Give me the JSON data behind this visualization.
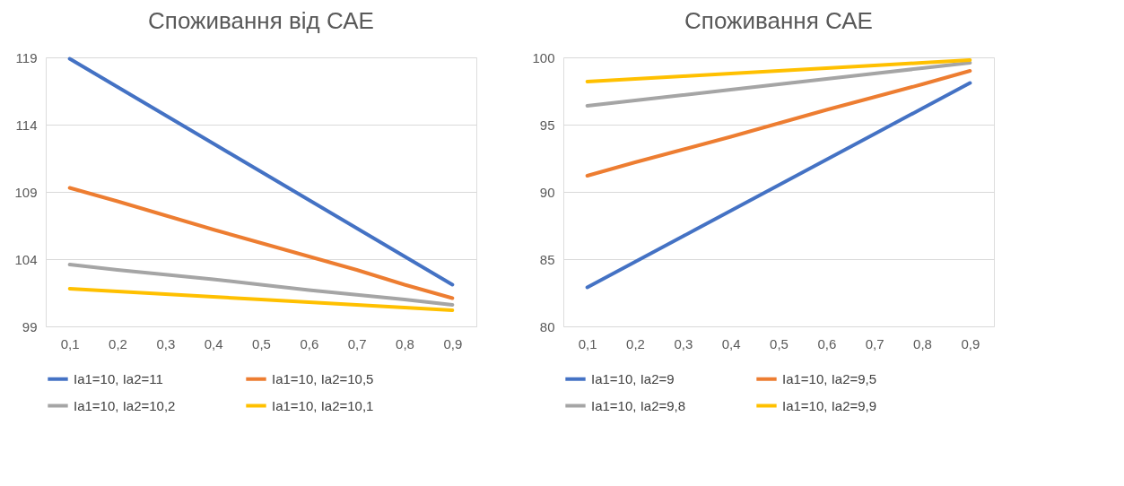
{
  "chart_data": [
    {
      "type": "line",
      "title": "Споживання від САЕ",
      "categories": [
        "0,1",
        "0,2",
        "0,3",
        "0,4",
        "0,5",
        "0,6",
        "0,7",
        "0,8",
        "0,9"
      ],
      "ylim": [
        99,
        119
      ],
      "yticks": [
        99,
        104,
        109,
        114,
        119
      ],
      "grid": "y",
      "legend": "bottom",
      "line_style": "solid",
      "marker": "none",
      "series": [
        {
          "name": "Ia1=10, Ia2=11",
          "color": "#4472c4",
          "values": [
            118.9,
            116.8,
            114.7,
            112.6,
            110.5,
            108.4,
            106.3,
            104.2,
            102.1
          ]
        },
        {
          "name": "Ia1=10, Ia2=10,5",
          "color": "#ed7d31",
          "values": [
            109.3,
            108.3,
            107.25,
            106.2,
            105.2,
            104.2,
            103.2,
            102.1,
            101.1
          ]
        },
        {
          "name": "Ia1=10, Ia2=10,2",
          "color": "#a5a5a5",
          "values": [
            103.6,
            103.2,
            102.85,
            102.5,
            102.1,
            101.7,
            101.35,
            101.0,
            100.6
          ]
        },
        {
          "name": "Ia1=10, Ia2=10,1",
          "color": "#ffc000",
          "values": [
            101.8,
            101.6,
            101.4,
            101.2,
            101.0,
            100.8,
            100.6,
            100.4,
            100.2
          ]
        }
      ]
    },
    {
      "type": "line",
      "title": "Споживання САЕ",
      "categories": [
        "0,1",
        "0,2",
        "0,3",
        "0,4",
        "0,5",
        "0,6",
        "0,7",
        "0,8",
        "0,9"
      ],
      "ylim": [
        80,
        100
      ],
      "yticks": [
        80,
        85,
        90,
        95,
        100
      ],
      "grid": "y",
      "legend": "bottom",
      "line_style": "solid",
      "marker": "none",
      "series": [
        {
          "name": "Ia1=10, Ia2=9",
          "color": "#4472c4",
          "values": [
            82.9,
            84.8,
            86.7,
            88.6,
            90.5,
            92.4,
            94.3,
            96.2,
            98.1
          ]
        },
        {
          "name": "Ia1=10, Ia2=9,5",
          "color": "#ed7d31",
          "values": [
            91.2,
            92.2,
            93.15,
            94.1,
            95.1,
            96.1,
            97.05,
            98.0,
            99.0
          ]
        },
        {
          "name": "Ia1=10, Ia2=9,8",
          "color": "#a5a5a5",
          "values": [
            96.4,
            96.8,
            97.2,
            97.6,
            98.0,
            98.4,
            98.8,
            99.2,
            99.6
          ]
        },
        {
          "name": "Ia1=10, Ia2=9,9",
          "color": "#ffc000",
          "values": [
            98.2,
            98.4,
            98.6,
            98.8,
            99.0,
            99.2,
            99.4,
            99.6,
            99.8
          ]
        }
      ]
    }
  ]
}
